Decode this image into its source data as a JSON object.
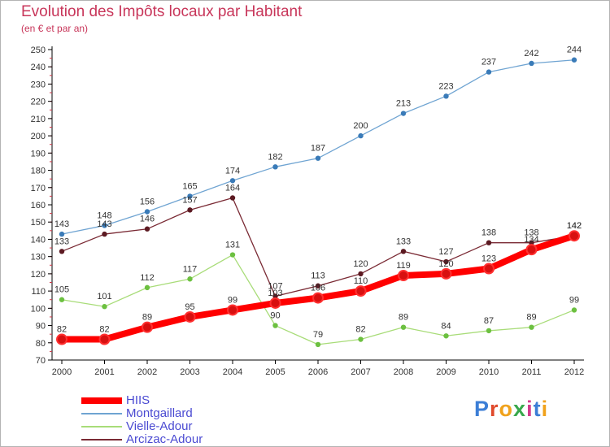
{
  "title": "Evolution des Impôts locaux par Habitant",
  "subtitle": "(en € et par an)",
  "logo": {
    "text": "Proxiti",
    "letter_colors": [
      "#3c7ed6",
      "#e04a2c",
      "#f0a21c",
      "#38a84c",
      "#d43a8c",
      "#3c7ed6",
      "#f0a21c"
    ]
  },
  "chart_data": {
    "type": "line",
    "x": [
      "2000",
      "2001",
      "2002",
      "2003",
      "2004",
      "2005",
      "2006",
      "2007",
      "2008",
      "2009",
      "2010",
      "2011",
      "2012"
    ],
    "ylim": [
      70,
      250
    ],
    "yticks": [
      70,
      80,
      90,
      100,
      110,
      120,
      130,
      140,
      150,
      160,
      170,
      180,
      190,
      200,
      210,
      220,
      230,
      240,
      250
    ],
    "grid": false,
    "legend_position": "bottom-left",
    "series": [
      {
        "name": "Montgaillard",
        "color": "#6fa4d2",
        "marker": "#3a7bb8",
        "values": [
          143,
          148,
          156,
          165,
          174,
          182,
          187,
          200,
          213,
          223,
          237,
          242,
          244
        ]
      },
      {
        "name": "Vielle-Adour",
        "color": "#a8dc78",
        "marker": "#6cc040",
        "values": [
          105,
          101,
          112,
          117,
          131,
          90,
          79,
          82,
          89,
          84,
          87,
          89,
          99
        ]
      },
      {
        "name": "Arcizac-Adour",
        "color": "#7a2a34",
        "marker": "#5c1a22",
        "values": [
          133,
          143,
          146,
          157,
          164,
          107,
          113,
          120,
          133,
          127,
          138,
          138,
          142
        ]
      },
      {
        "name": "HIIS",
        "color": "#ff0000",
        "marker": "#d81010",
        "values": [
          82,
          82,
          89,
          95,
          99,
          103,
          106,
          110,
          119,
          120,
          123,
          134,
          142
        ]
      }
    ],
    "legend_order": [
      "HIIS",
      "Montgaillard",
      "Vielle-Adour",
      "Arcizac-Adour"
    ]
  }
}
